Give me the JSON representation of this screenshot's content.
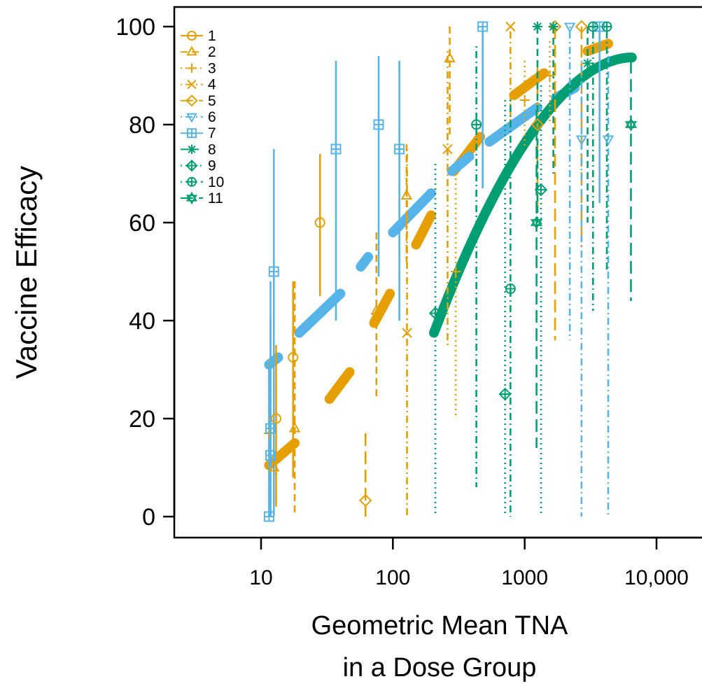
{
  "colors": {
    "orange": "#E69F00",
    "blue": "#56B4E9",
    "green": "#009E73"
  },
  "chart_data": {
    "type": "scatter",
    "xlabel_line1": "Geometric Mean TNA",
    "xlabel_line2": "in a Dose Group",
    "ylabel": "Vaccine Efficacy",
    "x_scale": "log",
    "xlim": [
      3,
      10000
    ],
    "ylim": [
      0,
      100
    ],
    "x_ticks": [
      10,
      100,
      1000,
      10000
    ],
    "x_tick_labels": [
      "10",
      "100",
      "1000",
      "10,000"
    ],
    "y_ticks": [
      0,
      20,
      40,
      60,
      80,
      100
    ],
    "y_tick_labels": [
      "0",
      "20",
      "40",
      "60",
      "80",
      "100"
    ],
    "grid": false,
    "legend_position": "top-left",
    "series": [
      {
        "name": "1",
        "marker": "circle",
        "color": "orange",
        "line": "solid",
        "points": [
          {
            "x": 13,
            "y": 20,
            "lo": 2,
            "hi": 35
          },
          {
            "x": 17.5,
            "y": 32.5,
            "lo": 8,
            "hi": 48
          },
          {
            "x": 28,
            "y": 60,
            "lo": 45,
            "hi": 74
          }
        ]
      },
      {
        "name": "2",
        "marker": "triangle-up",
        "color": "orange",
        "line": "dashed",
        "points": [
          {
            "x": 12.5,
            "y": 10,
            "lo": 0,
            "hi": 32
          },
          {
            "x": 18,
            "y": 18,
            "lo": 0,
            "hi": 48
          },
          {
            "x": 75,
            "y": 42,
            "lo": 24,
            "hi": 58
          },
          {
            "x": 127,
            "y": 65.5,
            "lo": 52,
            "hi": 76
          },
          {
            "x": 270,
            "y": 93.5,
            "lo": 78,
            "hi": 100
          }
        ]
      },
      {
        "name": "3",
        "marker": "plus",
        "color": "orange",
        "line": "dotted",
        "points": [
          {
            "x": 11.5,
            "y": 17,
            "lo": 0,
            "hi": 32
          },
          {
            "x": 300,
            "y": 50,
            "lo": 20,
            "hi": 70
          },
          {
            "x": 1000,
            "y": 85,
            "lo": 75,
            "hi": 93
          },
          {
            "x": 1550,
            "y": 90,
            "lo": 80,
            "hi": 97
          }
        ]
      },
      {
        "name": "4",
        "marker": "cross",
        "color": "orange",
        "line": "dotdash",
        "points": [
          {
            "x": 128,
            "y": 37.5,
            "lo": 0,
            "hi": 75
          },
          {
            "x": 260,
            "y": 75,
            "lo": 35,
            "hi": 95
          },
          {
            "x": 780,
            "y": 100,
            "lo": 80,
            "hi": 100
          }
        ]
      },
      {
        "name": "5",
        "marker": "diamond",
        "color": "orange",
        "line": "longdash",
        "points": [
          {
            "x": 62,
            "y": 3.3,
            "lo": 0,
            "hi": 17
          },
          {
            "x": 1250,
            "y": 80,
            "lo": 62,
            "hi": 92
          },
          {
            "x": 1700,
            "y": 100,
            "lo": 36,
            "hi": 100
          },
          {
            "x": 2700,
            "y": 100,
            "lo": 55,
            "hi": 100
          }
        ]
      },
      {
        "name": "6",
        "marker": "triangle-down",
        "color": "blue",
        "line": "dotdash",
        "points": [
          {
            "x": 2200,
            "y": 100,
            "lo": 36,
            "hi": 100
          },
          {
            "x": 2700,
            "y": 77,
            "lo": 0,
            "hi": 93
          },
          {
            "x": 4300,
            "y": 77,
            "lo": 0,
            "hi": 95
          }
        ]
      },
      {
        "name": "7",
        "marker": "square-plus",
        "color": "blue",
        "line": "solid",
        "points": [
          {
            "x": 11.5,
            "y": 0,
            "lo": 0,
            "hi": 30
          },
          {
            "x": 11.8,
            "y": 12.5,
            "lo": 0,
            "hi": 40
          },
          {
            "x": 11.8,
            "y": 18,
            "lo": 0,
            "hi": 48
          },
          {
            "x": 12.5,
            "y": 50,
            "lo": 0,
            "hi": 75
          },
          {
            "x": 37,
            "y": 75,
            "lo": 40,
            "hi": 93
          },
          {
            "x": 78,
            "y": 80,
            "lo": 49,
            "hi": 94
          },
          {
            "x": 112,
            "y": 75,
            "lo": 40,
            "hi": 93
          },
          {
            "x": 480,
            "y": 100,
            "lo": 67,
            "hi": 100
          },
          {
            "x": 3700,
            "y": 100,
            "lo": 64,
            "hi": 100
          }
        ]
      },
      {
        "name": "8",
        "marker": "asterisk",
        "color": "green",
        "line": "dashed",
        "points": [
          {
            "x": 1250,
            "y": 100,
            "lo": 60,
            "hi": 100
          },
          {
            "x": 1650,
            "y": 100,
            "lo": 70,
            "hi": 100
          },
          {
            "x": 3000,
            "y": 92.5,
            "lo": 60,
            "hi": 100
          }
        ]
      },
      {
        "name": "9",
        "marker": "diamond-plus",
        "color": "green",
        "line": "dotted",
        "points": [
          {
            "x": 210,
            "y": 41.5,
            "lo": 0,
            "hi": 72
          },
          {
            "x": 710,
            "y": 25,
            "lo": 0,
            "hi": 85
          },
          {
            "x": 1330,
            "y": 66.7,
            "lo": 0,
            "hi": 88
          }
        ]
      },
      {
        "name": "10",
        "marker": "circle-plus",
        "color": "green",
        "line": "dotdash",
        "points": [
          {
            "x": 430,
            "y": 80,
            "lo": 6,
            "hi": 96
          },
          {
            "x": 780,
            "y": 46.5,
            "lo": 0,
            "hi": 85
          },
          {
            "x": 3300,
            "y": 100,
            "lo": 42,
            "hi": 100
          },
          {
            "x": 4200,
            "y": 100,
            "lo": 50,
            "hi": 100
          }
        ]
      },
      {
        "name": "11",
        "marker": "star-of-david",
        "color": "green",
        "line": "longdash",
        "points": [
          {
            "x": 1230,
            "y": 60,
            "lo": 14,
            "hi": 83
          },
          {
            "x": 6400,
            "y": 80,
            "lo": 44,
            "hi": 93
          }
        ]
      }
    ],
    "curves": [
      {
        "color": "orange",
        "x_from": 11.5,
        "x_to": 18,
        "y_from": 10.5,
        "y_to": 15
      },
      {
        "color": "orange",
        "x_from": 33,
        "x_to": 47,
        "y_from": 24,
        "y_to": 29.5
      },
      {
        "color": "orange",
        "x_from": 72,
        "x_to": 95,
        "y_from": 39.5,
        "y_to": 45.5
      },
      {
        "color": "orange",
        "x_from": 150,
        "x_to": 195,
        "y_from": 55.5,
        "y_to": 61.5
      },
      {
        "color": "orange",
        "x_from": 290,
        "x_to": 460,
        "y_from": 70.5,
        "y_to": 77.5
      },
      {
        "color": "orange",
        "x_from": 830,
        "x_to": 1400,
        "y_from": 86,
        "y_to": 90.5
      },
      {
        "color": "orange",
        "x_from": 3000,
        "x_to": 4300,
        "y_from": 95,
        "y_to": 96.5
      },
      {
        "color": "blue",
        "x_from": 11.5,
        "x_to": 13.5,
        "y_from": 31,
        "y_to": 32.5
      },
      {
        "color": "blue",
        "x_from": 19.5,
        "x_to": 40,
        "y_from": 37.5,
        "y_to": 45.5
      },
      {
        "color": "blue",
        "x_from": 57,
        "x_to": 65,
        "y_from": 51,
        "y_to": 53
      },
      {
        "color": "blue",
        "x_from": 100,
        "x_to": 195,
        "y_from": 58,
        "y_to": 66
      },
      {
        "color": "blue",
        "x_from": 280,
        "x_to": 380,
        "y_from": 70.5,
        "y_to": 73.5
      },
      {
        "color": "blue",
        "x_from": 540,
        "x_to": 1250,
        "y_from": 76.5,
        "y_to": 83.5
      },
      {
        "color": "blue",
        "x_from": 1720,
        "x_to": 2400,
        "y_from": 85.5,
        "y_to": 87.5
      },
      {
        "color": "green",
        "x_from": 205,
        "x_to": 6500,
        "y_from": 37.5,
        "y_to": 93.7,
        "shape": "logistic"
      }
    ]
  }
}
